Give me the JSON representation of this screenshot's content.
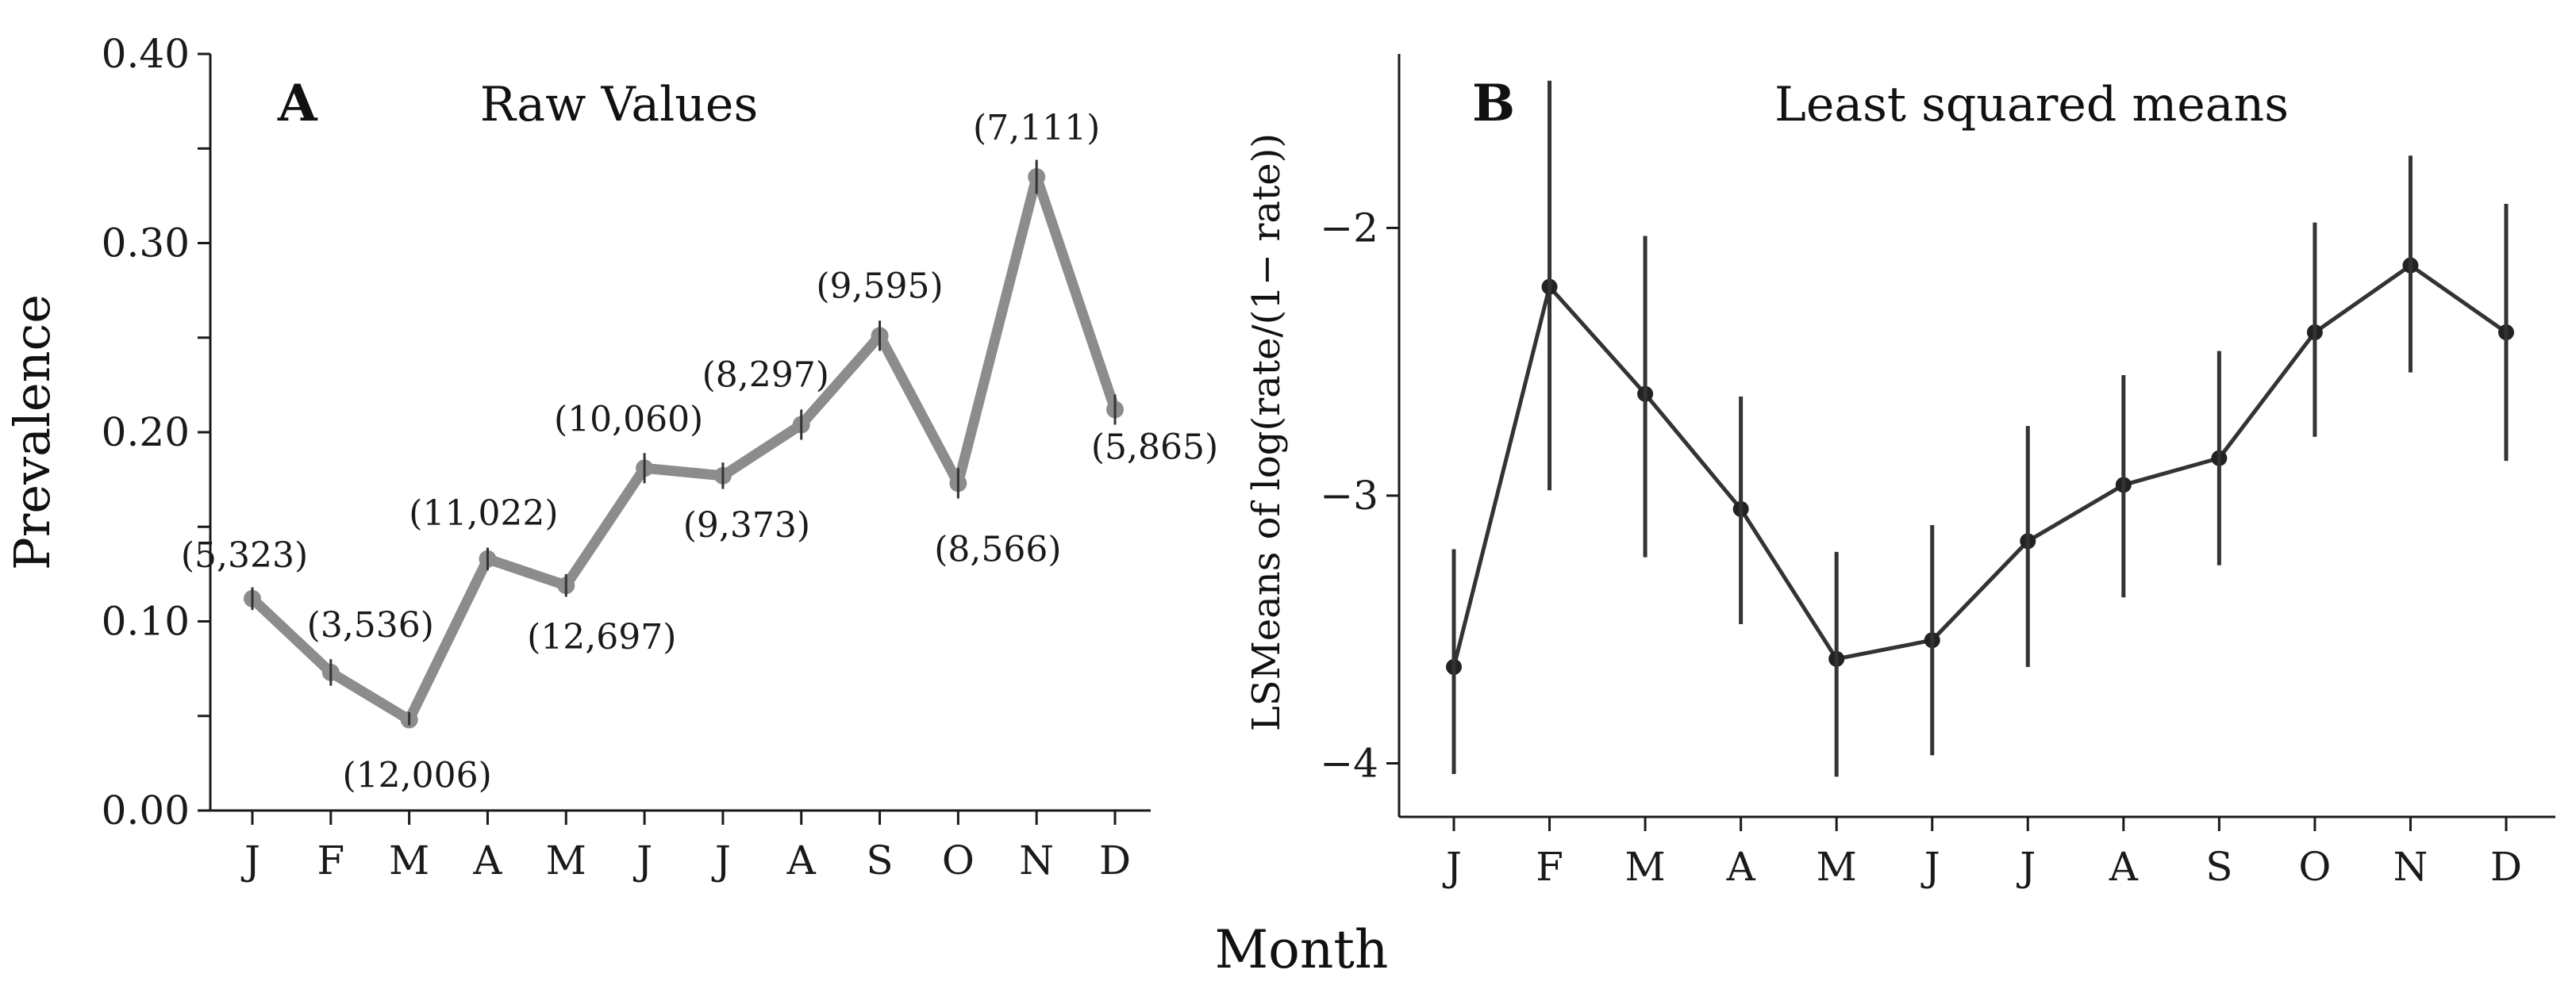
{
  "chart_data": [
    {
      "id": "A",
      "type": "line",
      "panel_letter": "A",
      "title": "Raw Values",
      "ylabel": "Prevalence",
      "xlabel": "Month",
      "categories": [
        "J",
        "F",
        "M",
        "A",
        "M",
        "J",
        "J",
        "A",
        "S",
        "O",
        "N",
        "D"
      ],
      "ylim": [
        0,
        0.4
      ],
      "yticks": [
        0.0,
        0.05,
        0.1,
        0.15,
        0.2,
        0.25,
        0.3,
        0.35,
        0.4
      ],
      "ytick_labels": [
        "0.00",
        "",
        "0.10",
        "",
        "0.20",
        "",
        "0.30",
        "",
        "0.40"
      ],
      "grid": false,
      "line_color": "#8c8c8c",
      "series": [
        {
          "name": "Prevalence",
          "values": [
            0.112,
            0.073,
            0.048,
            0.133,
            0.119,
            0.181,
            0.177,
            0.204,
            0.251,
            0.173,
            0.335,
            0.212
          ],
          "err_low": [
            0.106,
            0.066,
            0.045,
            0.127,
            0.113,
            0.173,
            0.17,
            0.196,
            0.243,
            0.165,
            0.326,
            0.204
          ],
          "err_high": [
            0.118,
            0.08,
            0.052,
            0.139,
            0.125,
            0.189,
            0.184,
            0.212,
            0.259,
            0.181,
            0.344,
            0.22
          ]
        }
      ],
      "annotations": [
        "(5,323)",
        "(3,536)",
        "(12,006)",
        "(11,022)",
        "(12,697)",
        "(10,060)",
        "(9,373)",
        "(8,297)",
        "(9,595)",
        "(8,566)",
        "(7,111)",
        "(5,865)"
      ]
    },
    {
      "id": "B",
      "type": "line",
      "panel_letter": "B",
      "title": "Least squared means",
      "ylabel": "LSMeans of log(rate/(1− rate))",
      "xlabel": "Month",
      "categories": [
        "J",
        "F",
        "M",
        "A",
        "M",
        "J",
        "J",
        "A",
        "S",
        "O",
        "N",
        "D"
      ],
      "ylim": [
        -4.2,
        -1.35
      ],
      "yticks": [
        -4,
        -3,
        -2
      ],
      "ytick_labels": [
        "−4",
        "−3",
        "−2"
      ],
      "grid": false,
      "line_color": "#333333",
      "series": [
        {
          "name": "LSMeans",
          "values": [
            -3.64,
            -2.22,
            -2.62,
            -3.05,
            -3.61,
            -3.54,
            -3.17,
            -2.96,
            -2.86,
            -2.39,
            -2.14,
            -2.39
          ],
          "err_low": [
            -4.04,
            -2.98,
            -3.23,
            -3.48,
            -4.05,
            -3.97,
            -3.64,
            -3.38,
            -3.26,
            -2.78,
            -2.54,
            -2.87
          ],
          "err_high": [
            -3.2,
            -1.45,
            -2.03,
            -2.63,
            -3.21,
            -3.11,
            -2.74,
            -2.55,
            -2.46,
            -1.98,
            -1.73,
            -1.91
          ]
        }
      ]
    }
  ],
  "figure": {
    "shared_xlabel": "Month"
  }
}
